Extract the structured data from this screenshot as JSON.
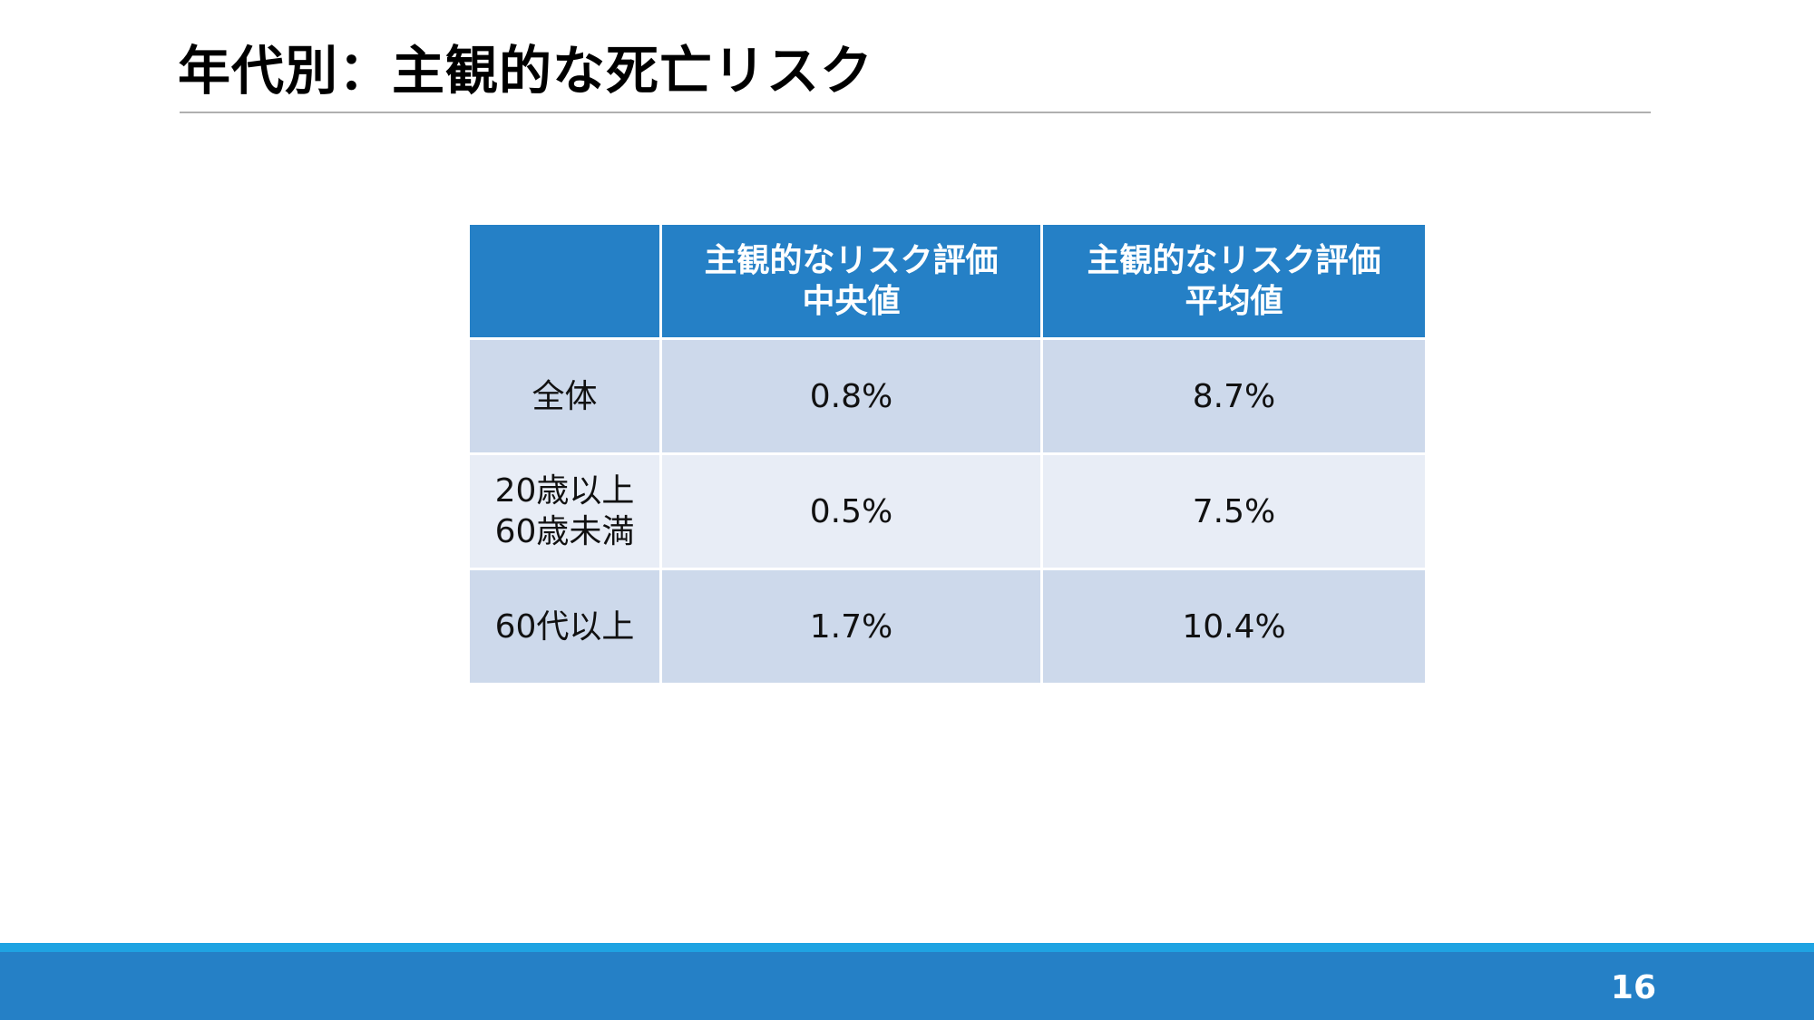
{
  "slide": {
    "title": "年代別：主観的な死亡リスク",
    "page_number": "16"
  },
  "table": {
    "headers": [
      {
        "line1": "",
        "line2": ""
      },
      {
        "line1": "主観的なリスク評価",
        "line2": "中央値"
      },
      {
        "line1": "主観的なリスク評価",
        "line2": "平均値"
      }
    ],
    "rows": [
      {
        "label_line1": "全体",
        "label_line2": "",
        "median": "0.8%",
        "mean": "8.7%"
      },
      {
        "label_line1": "20歳以上",
        "label_line2": "60歳未満",
        "median": "0.5%",
        "mean": "7.5%"
      },
      {
        "label_line1": "60代以上",
        "label_line2": "",
        "median": "1.7%",
        "mean": "10.4%"
      }
    ]
  },
  "colors": {
    "header_bg": "#2580c6",
    "row_dark": "#cdd9eb",
    "row_light": "#e8edf6",
    "footer_band": "#2580c6",
    "footer_accent": "#1fa3e2"
  }
}
